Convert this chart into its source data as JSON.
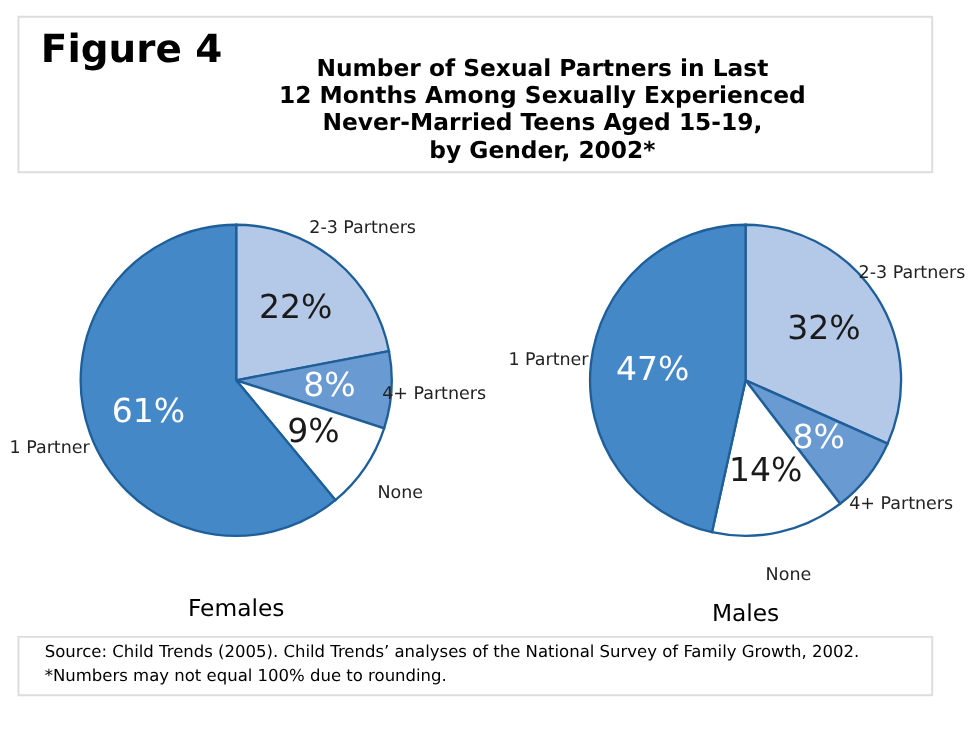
{
  "chart_data": [
    {
      "type": "other",
      "title": "Number of Sexual Partners in Last\n12 Months Among Sexually Experienced\nNever-Married Teens Aged 15-19,\nby Gender, 2002*",
      "annotations": [
        "Figure 4"
      ]
    },
    {
      "type": "pie",
      "title": "Females",
      "categories": [
        "2-3 Partners",
        "4+ Partners",
        "None",
        "1 Partner"
      ],
      "values": [
        22,
        8,
        9,
        61
      ],
      "value_labels": [
        "22%",
        "8%",
        "9%",
        "61%"
      ],
      "colors": [
        "#b4c8e8",
        "#6a9ad2",
        "#ffffff",
        "#4588c8"
      ]
    },
    {
      "type": "pie",
      "title": "Males",
      "categories": [
        "2-3 Partners",
        "4+ Partners",
        "None",
        "1 Partner"
      ],
      "values": [
        32,
        8,
        14,
        47
      ],
      "value_labels": [
        "32%",
        "8%",
        "14%",
        "47%"
      ],
      "colors": [
        "#b4c8e8",
        "#6a9ad2",
        "#ffffff",
        "#4588c8"
      ]
    },
    {
      "type": "other",
      "annotations": [
        "Source: Child Trends (2005). Child Trends’ analyses of the National Survey of Family Growth, 2002.",
        "*Numbers may not equal 100% due to rounding."
      ]
    }
  ]
}
